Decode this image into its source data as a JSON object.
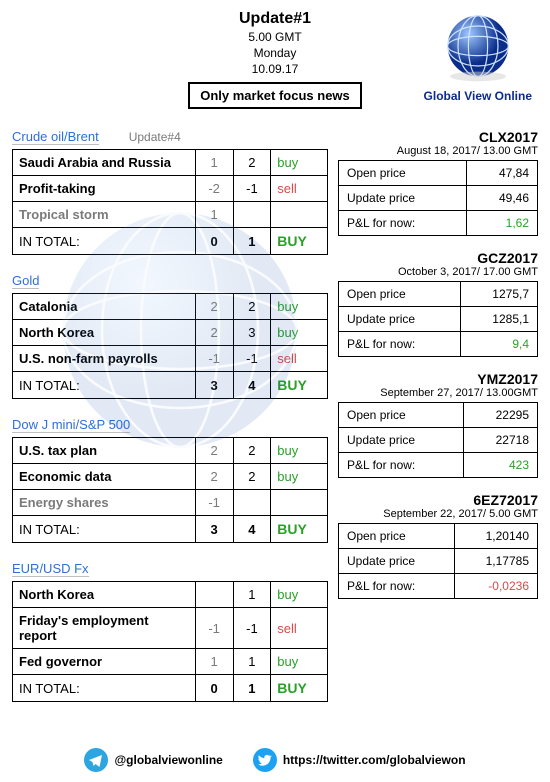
{
  "header": {
    "title": "Update#1",
    "time": "5.00 GMT",
    "day": "Monday",
    "date": "10.09.17",
    "badge": "Only market focus news",
    "brand": "Global View Online"
  },
  "sections": [
    {
      "title": "Crude oil/Brent",
      "note": "Update#4",
      "rows": [
        {
          "name": "Saudi Arabia and Russia",
          "a": "1",
          "b": "2",
          "sig": "buy",
          "sigClass": "buy"
        },
        {
          "name": "Profit-taking",
          "a": "-2",
          "b": "-1",
          "sig": "sell",
          "sigClass": "sell"
        },
        {
          "name": "Tropical storm",
          "faded": true,
          "a": "1",
          "b": "",
          "sig": "",
          "sigClass": ""
        }
      ],
      "total": {
        "label": "IN TOTAL:",
        "a": "0",
        "b": "1",
        "sig": "BUY",
        "sigClass": "bigbuy"
      }
    },
    {
      "title": "Gold",
      "rows": [
        {
          "name": "Catalonia",
          "a": "2",
          "b": "2",
          "sig": "buy",
          "sigClass": "buy"
        },
        {
          "name": "North Korea",
          "a": "2",
          "b": "3",
          "sig": "buy",
          "sigClass": "buy"
        },
        {
          "name": "U.S. non-farm payrolls",
          "a": "-1",
          "b": "-1",
          "sig": "sell",
          "sigClass": "sell"
        }
      ],
      "total": {
        "label": "IN TOTAL:",
        "a": "3",
        "b": "4",
        "sig": "BUY",
        "sigClass": "bigbuy"
      }
    },
    {
      "title": "Dow J mini/S&P 500",
      "rows": [
        {
          "name": "U.S. tax plan",
          "a": "2",
          "b": "2",
          "sig": "buy",
          "sigClass": "buy"
        },
        {
          "name": "Economic data",
          "a": "2",
          "b": "2",
          "sig": "buy",
          "sigClass": "buy"
        },
        {
          "name": "Energy shares",
          "faded": true,
          "a": "-1",
          "b": "",
          "sig": "",
          "sigClass": ""
        }
      ],
      "total": {
        "label": "IN TOTAL:",
        "a": "3",
        "b": "4",
        "sig": "BUY",
        "sigClass": "bigbuy"
      }
    },
    {
      "title": "EUR/USD Fx",
      "rows": [
        {
          "name": "North Korea",
          "a": "",
          "b": "1",
          "sig": "buy",
          "sigClass": "buy"
        },
        {
          "name": "Friday's employment report",
          "a": "-1",
          "b": "-1",
          "sig": "sell",
          "sigClass": "sell"
        },
        {
          "name": "Fed governor",
          "a": "1",
          "b": "1",
          "sig": "buy",
          "sigClass": "buy"
        }
      ],
      "total": {
        "label": "IN TOTAL:",
        "a": "0",
        "b": "1",
        "sig": "BUY",
        "sigClass": "bigbuy"
      }
    }
  ],
  "pnl": [
    {
      "code": "CLX2017",
      "date": "August 18, 2017/ 13.00 GMT",
      "rows": [
        {
          "label": "Open price",
          "value": "47,84"
        },
        {
          "label": "Update price",
          "value": "49,46"
        },
        {
          "label": "P&L for now:",
          "value": "1,62",
          "valClass": "pos"
        }
      ]
    },
    {
      "code": "GCZ2017",
      "date": "October 3, 2017/ 17.00 GMT",
      "rows": [
        {
          "label": "Open price",
          "value": "1275,7"
        },
        {
          "label": "Update price",
          "value": "1285,1"
        },
        {
          "label": "P&L for now:",
          "value": "9,4",
          "valClass": "pos"
        }
      ]
    },
    {
      "code": "YMZ2017",
      "date": "September 27, 2017/ 13.00GMT",
      "rows": [
        {
          "label": "Open price",
          "value": "22295"
        },
        {
          "label": "Update price",
          "value": "22718"
        },
        {
          "label": "P&L for now:",
          "value": "423",
          "valClass": "pos"
        }
      ]
    },
    {
      "code": "6EZ72017",
      "date": "September 22, 2017/ 5.00 GMT",
      "rows": [
        {
          "label": "Open price",
          "value": "1,20140"
        },
        {
          "label": "Update price",
          "value": "1,17785"
        },
        {
          "label": "P&L for now:",
          "value": "-0,0236",
          "valClass": "neg"
        }
      ]
    }
  ],
  "footer": {
    "telegram": "@globalviewonline",
    "twitter": "https://twitter.com/globalviewon"
  }
}
